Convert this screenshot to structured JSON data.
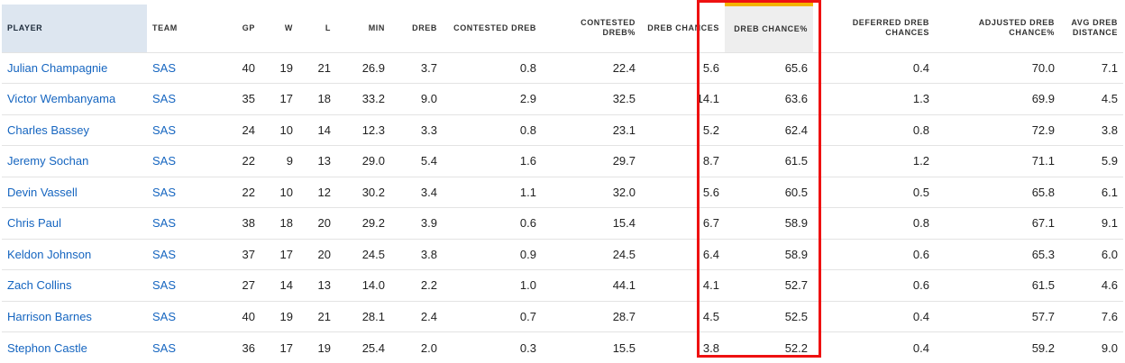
{
  "columns": [
    {
      "label": "PLAYER"
    },
    {
      "label": "TEAM"
    },
    {
      "label": "GP"
    },
    {
      "label": "W"
    },
    {
      "label": "L"
    },
    {
      "label": "MIN"
    },
    {
      "label": "DREB"
    },
    {
      "label": "CONTESTED DREB"
    },
    {
      "label": "CONTESTED DREB%"
    },
    {
      "label": "DREB CHANCES"
    },
    {
      "label": "DREB CHANCE%"
    },
    {
      "label": "DEFERRED DREB CHANCES"
    },
    {
      "label": "ADJUSTED DREB CHANCE%"
    },
    {
      "label": "AVG DREB DISTANCE"
    }
  ],
  "sorted_column": "DREB CHANCE%",
  "colors": {
    "link": "#1565c0",
    "sort_indicator": "#f4b400",
    "highlight_box": "#ee1111",
    "player_header_bg": "#dde6f0"
  },
  "rows": [
    {
      "player": "Julian Champagnie",
      "team": "SAS",
      "gp": "40",
      "w": "19",
      "l": "21",
      "min": "26.9",
      "dreb": "3.7",
      "cdreb": "0.8",
      "cdrebpct": "22.4",
      "chances": "5.6",
      "chancepct": "65.6",
      "deferred": "0.4",
      "adjpct": "70.0",
      "dist": "7.1"
    },
    {
      "player": "Victor Wembanyama",
      "team": "SAS",
      "gp": "35",
      "w": "17",
      "l": "18",
      "min": "33.2",
      "dreb": "9.0",
      "cdreb": "2.9",
      "cdrebpct": "32.5",
      "chances": "14.1",
      "chancepct": "63.6",
      "deferred": "1.3",
      "adjpct": "69.9",
      "dist": "4.5"
    },
    {
      "player": "Charles Bassey",
      "team": "SAS",
      "gp": "24",
      "w": "10",
      "l": "14",
      "min": "12.3",
      "dreb": "3.3",
      "cdreb": "0.8",
      "cdrebpct": "23.1",
      "chances": "5.2",
      "chancepct": "62.4",
      "deferred": "0.8",
      "adjpct": "72.9",
      "dist": "3.8"
    },
    {
      "player": "Jeremy Sochan",
      "team": "SAS",
      "gp": "22",
      "w": "9",
      "l": "13",
      "min": "29.0",
      "dreb": "5.4",
      "cdreb": "1.6",
      "cdrebpct": "29.7",
      "chances": "8.7",
      "chancepct": "61.5",
      "deferred": "1.2",
      "adjpct": "71.1",
      "dist": "5.9"
    },
    {
      "player": "Devin Vassell",
      "team": "SAS",
      "gp": "22",
      "w": "10",
      "l": "12",
      "min": "30.2",
      "dreb": "3.4",
      "cdreb": "1.1",
      "cdrebpct": "32.0",
      "chances": "5.6",
      "chancepct": "60.5",
      "deferred": "0.5",
      "adjpct": "65.8",
      "dist": "6.1"
    },
    {
      "player": "Chris Paul",
      "team": "SAS",
      "gp": "38",
      "w": "18",
      "l": "20",
      "min": "29.2",
      "dreb": "3.9",
      "cdreb": "0.6",
      "cdrebpct": "15.4",
      "chances": "6.7",
      "chancepct": "58.9",
      "deferred": "0.8",
      "adjpct": "67.1",
      "dist": "9.1"
    },
    {
      "player": "Keldon Johnson",
      "team": "SAS",
      "gp": "37",
      "w": "17",
      "l": "20",
      "min": "24.5",
      "dreb": "3.8",
      "cdreb": "0.9",
      "cdrebpct": "24.5",
      "chances": "6.4",
      "chancepct": "58.9",
      "deferred": "0.6",
      "adjpct": "65.3",
      "dist": "6.0"
    },
    {
      "player": "Zach Collins",
      "team": "SAS",
      "gp": "27",
      "w": "14",
      "l": "13",
      "min": "14.0",
      "dreb": "2.2",
      "cdreb": "1.0",
      "cdrebpct": "44.1",
      "chances": "4.1",
      "chancepct": "52.7",
      "deferred": "0.6",
      "adjpct": "61.5",
      "dist": "4.6"
    },
    {
      "player": "Harrison Barnes",
      "team": "SAS",
      "gp": "40",
      "w": "19",
      "l": "21",
      "min": "28.1",
      "dreb": "2.4",
      "cdreb": "0.7",
      "cdrebpct": "28.7",
      "chances": "4.5",
      "chancepct": "52.5",
      "deferred": "0.4",
      "adjpct": "57.7",
      "dist": "7.6"
    },
    {
      "player": "Stephon Castle",
      "team": "SAS",
      "gp": "36",
      "w": "17",
      "l": "19",
      "min": "25.4",
      "dreb": "2.0",
      "cdreb": "0.3",
      "cdrebpct": "15.5",
      "chances": "3.8",
      "chancepct": "52.2",
      "deferred": "0.4",
      "adjpct": "59.2",
      "dist": "9.0"
    }
  ]
}
